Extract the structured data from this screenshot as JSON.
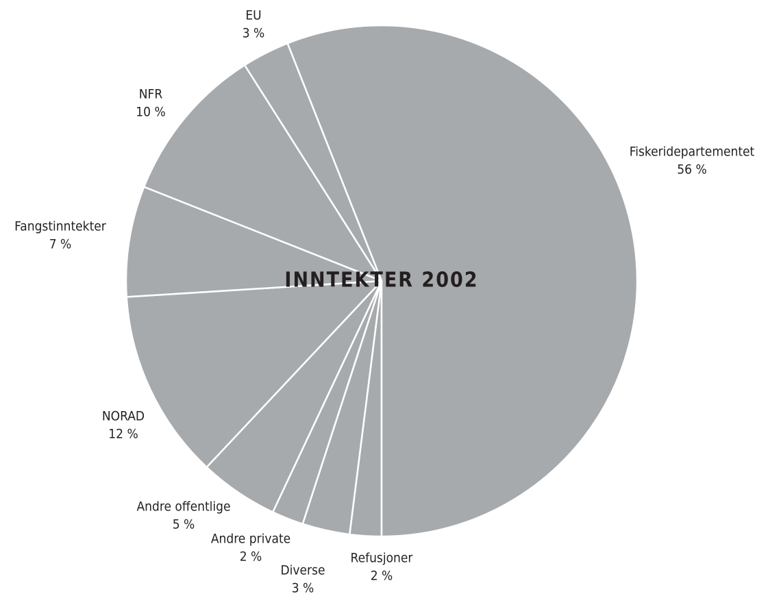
{
  "chart_data": {
    "type": "pie",
    "title": "INNTEKTER 2002",
    "categories": [
      "Refusjoner",
      "Diverse",
      "Andre private",
      "Andre offentlige",
      "NORAD",
      "Fangstinntekter",
      "NFR",
      "EU",
      "Fiskeridepartementet"
    ],
    "values": [
      2,
      3,
      2,
      5,
      12,
      7,
      10,
      3,
      56
    ],
    "value_labels": [
      "2 %",
      "3 %",
      "2 %",
      "5 %",
      "12 %",
      "7 %",
      "10 %",
      "3 %",
      "56 %"
    ],
    "color": "#a7aaad"
  }
}
